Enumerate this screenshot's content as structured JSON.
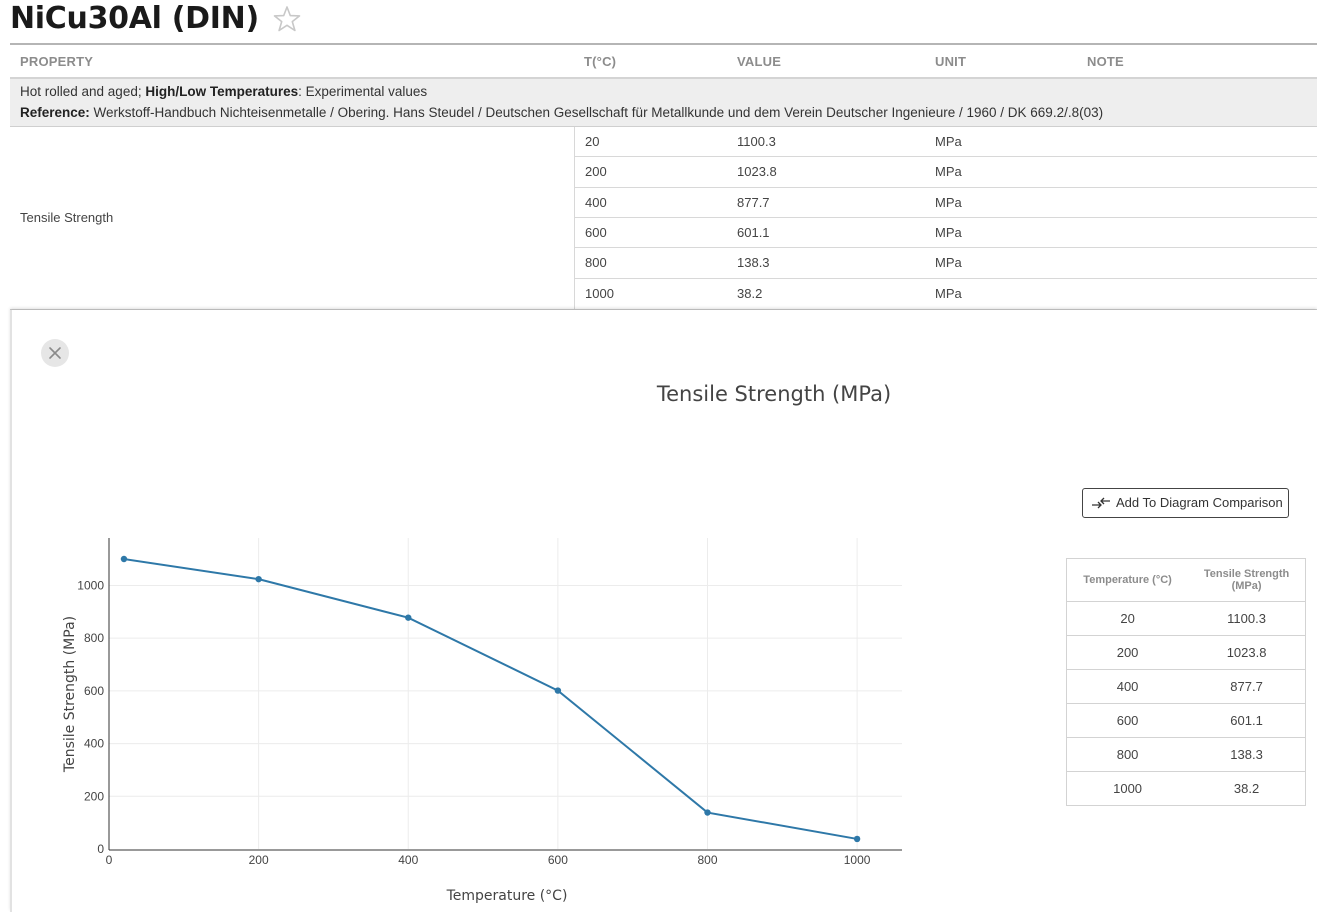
{
  "title": "NiCu30Al (DIN)",
  "icons": {
    "favorite": "star-icon",
    "close": "close-icon",
    "compare": "compare-arrows-icon"
  },
  "table": {
    "headers": {
      "property": "PROPERTY",
      "temperature": "T(°C)",
      "value": "VALUE",
      "unit": "UNIT",
      "note": "NOTE"
    },
    "condition": {
      "prefix": "Hot rolled and aged; ",
      "strong": "High/Low Temperatures",
      "suffix": ": Experimental values"
    },
    "reference": {
      "label": "Reference:",
      "text": " Werkstoff-Handbuch Nichteisenmetalle / Obering. Hans Steudel / Deutschen Gesellschaft für Metallkunde und dem Verein Deutscher Ingenieure / 1960 / DK 669.2/.8(03)"
    },
    "property_name": "Tensile Strength",
    "rows": [
      {
        "t": "20",
        "value": "1100.3",
        "unit": "MPa"
      },
      {
        "t": "200",
        "value": "1023.8",
        "unit": "MPa"
      },
      {
        "t": "400",
        "value": "877.7",
        "unit": "MPa"
      },
      {
        "t": "600",
        "value": "601.1",
        "unit": "MPa"
      },
      {
        "t": "800",
        "value": "138.3",
        "unit": "MPa"
      },
      {
        "t": "1000",
        "value": "38.2",
        "unit": "MPa"
      }
    ]
  },
  "compare_button": {
    "label": "Add To Diagram Comparison"
  },
  "side_table": {
    "headers": {
      "temperature": "Temperature (°C)",
      "value_line1": "Tensile Strength",
      "value_line2": "(MPa)"
    },
    "rows": [
      {
        "t": "20",
        "v": "1100.3"
      },
      {
        "t": "200",
        "v": "1023.8"
      },
      {
        "t": "400",
        "v": "877.7"
      },
      {
        "t": "600",
        "v": "601.1"
      },
      {
        "t": "800",
        "v": "138.3"
      },
      {
        "t": "1000",
        "v": "38.2"
      }
    ]
  },
  "chart_data": {
    "type": "line",
    "title": "Tensile Strength (MPa)",
    "xlabel": "Temperature (°C)",
    "ylabel": "Tensile Strength (MPa)",
    "x": [
      20,
      200,
      400,
      600,
      800,
      1000
    ],
    "series": [
      {
        "values": [
          1100.3,
          1023.8,
          877.7,
          601.1,
          138.3,
          38.2
        ]
      }
    ],
    "xlim": [
      0,
      1060
    ],
    "ylim": [
      0,
      1180
    ],
    "xticks": [
      0,
      200,
      400,
      600,
      800,
      1000
    ],
    "yticks": [
      0,
      200,
      400,
      600,
      800,
      1000
    ],
    "grid": true,
    "line_color": "#2e78a8"
  }
}
